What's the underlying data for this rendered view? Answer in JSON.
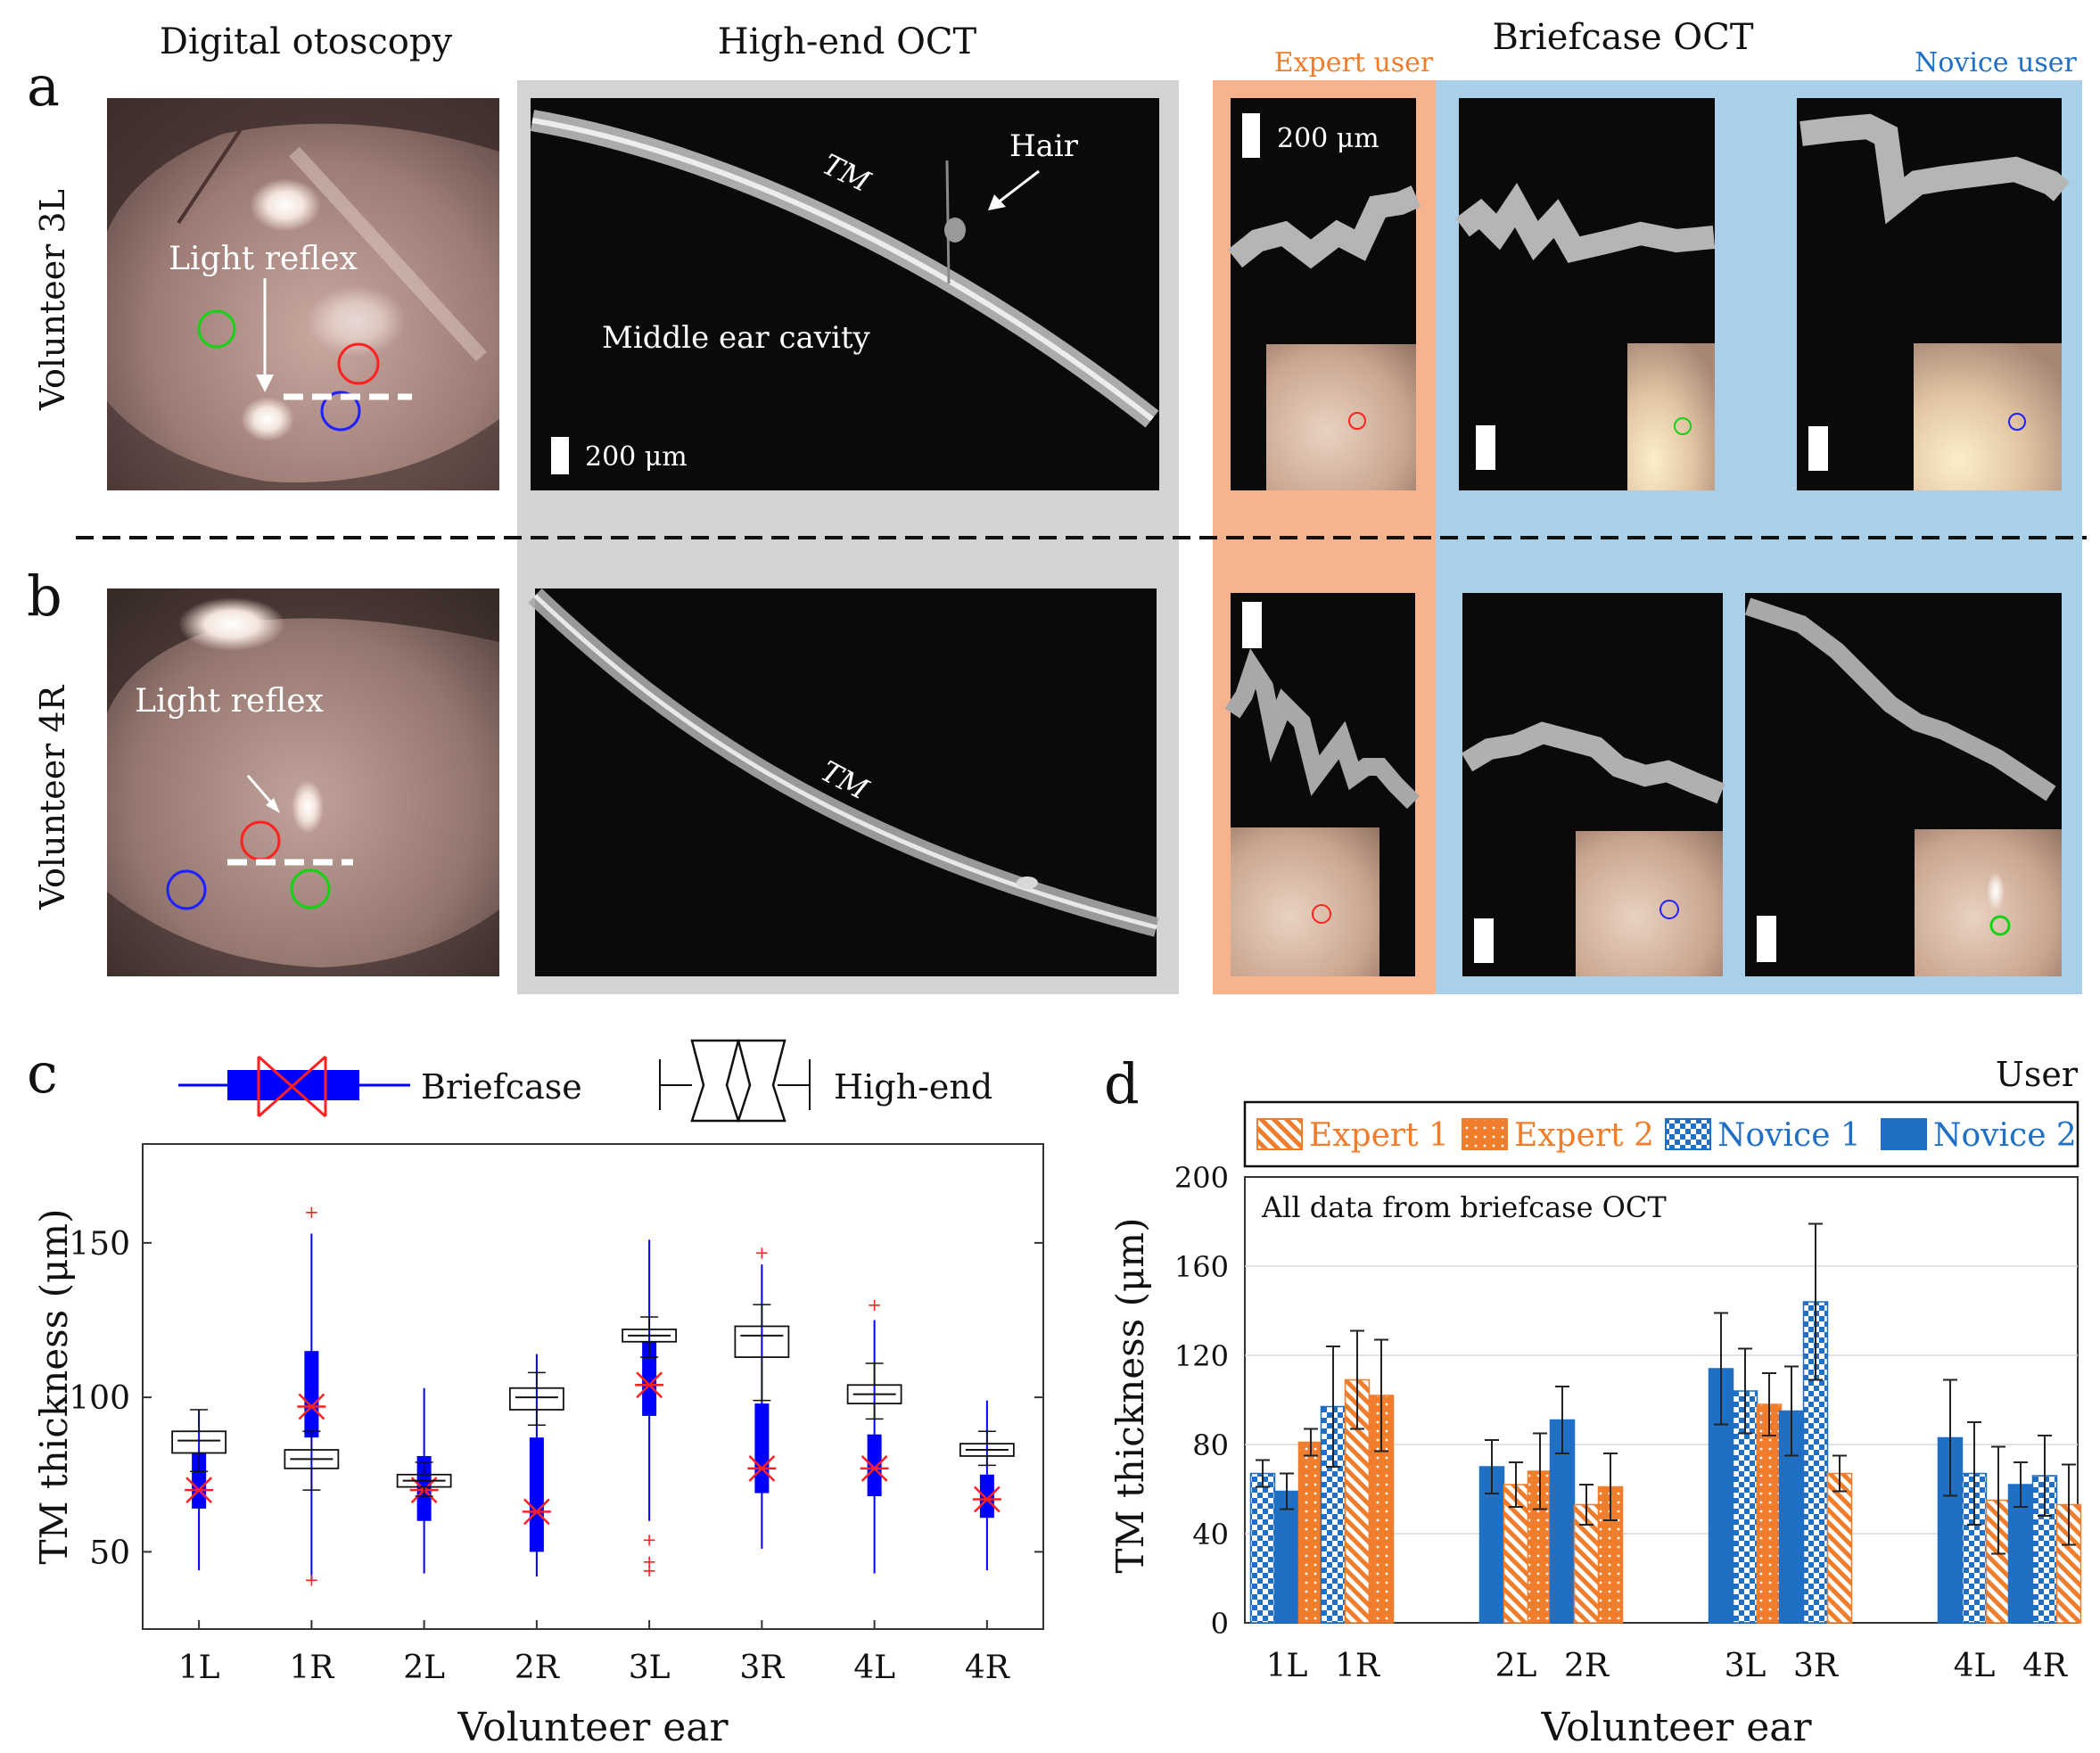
{
  "panels": {
    "a": {
      "letter": "a",
      "volunteer": "Volunteer  3L",
      "light_reflex": "Light reflex",
      "tm": "TM",
      "hair": "Hair",
      "cavity": "Middle ear cavity",
      "scale_hi": "200 μm",
      "scale_bf": "200 μm"
    },
    "b": {
      "letter": "b",
      "volunteer": "Volunteer  4R",
      "light_reflex": "Light reflex",
      "tm": "TM"
    },
    "c": {
      "letter": "c",
      "legend_briefcase": "Briefcase",
      "legend_highend": "High-end"
    },
    "d": {
      "letter": "d",
      "legend_title": "User",
      "annotation": "All data from briefcase OCT"
    }
  },
  "headers": {
    "otoscopy": "Digital otoscopy",
    "highend": "High-end OCT",
    "briefcase": "Briefcase OCT",
    "expert": "Expert user",
    "novice": "Novice user"
  },
  "colors": {
    "expert_bg": "#f7b28e",
    "novice_bg": "#a9cfe9",
    "gray_bg": "#d3d3d3",
    "expert_orange": "#ef7d2c",
    "novice_blue": "#1f6fc5",
    "box_blue": "#0000ff",
    "median_red": "#ff2020"
  },
  "chart_data": [
    {
      "type": "box",
      "ylabel": "TM thickness (μm)",
      "xlabel": "Volunteer ear",
      "categories": [
        "1L",
        "1R",
        "2L",
        "2R",
        "3L",
        "3R",
        "4L",
        "4R"
      ],
      "yticks": [
        50,
        100,
        150
      ],
      "ylim": [
        25,
        182
      ],
      "grid": false,
      "highend": [
        {
          "min": 76,
          "q1": 82,
          "median": 86,
          "q3": 89,
          "max": 96
        },
        {
          "min": 70,
          "q1": 77,
          "median": 80,
          "q3": 83,
          "max": 89
        },
        {
          "min": 68,
          "q1": 71,
          "median": 73,
          "q3": 75,
          "max": 79
        },
        {
          "min": 91,
          "q1": 96,
          "median": 100,
          "q3": 103,
          "max": 108
        },
        {
          "min": 113,
          "q1": 118,
          "median": 120,
          "q3": 122,
          "max": 126
        },
        {
          "min": 99,
          "q1": 113,
          "median": 120,
          "q3": 123,
          "max": 130
        },
        {
          "min": 93,
          "q1": 98,
          "median": 101,
          "q3": 104,
          "max": 111
        },
        {
          "min": 78,
          "q1": 81,
          "median": 83,
          "q3": 85,
          "max": 89
        }
      ],
      "briefcase": [
        {
          "whisker_low": 44,
          "q1": 64,
          "median": 70,
          "q3": 82,
          "whisker_high": 96,
          "outliers": []
        },
        {
          "whisker_low": 41,
          "q1": 87,
          "median": 97,
          "q3": 115,
          "whisker_high": 153,
          "outliers": [
            41,
            160
          ]
        },
        {
          "whisker_low": 43,
          "q1": 60,
          "median": 70,
          "q3": 81,
          "whisker_high": 103,
          "outliers": []
        },
        {
          "whisker_low": 42,
          "q1": 50,
          "median": 63,
          "q3": 87,
          "whisker_high": 114,
          "outliers": []
        },
        {
          "whisker_low": 60,
          "q1": 94,
          "median": 104,
          "q3": 118,
          "whisker_high": 151,
          "outliers": [
            44,
            47,
            54
          ]
        },
        {
          "whisker_low": 51,
          "q1": 69,
          "median": 77,
          "q3": 98,
          "whisker_high": 143,
          "outliers": [
            147
          ]
        },
        {
          "whisker_low": 43,
          "q1": 68,
          "median": 77,
          "q3": 88,
          "whisker_high": 125,
          "outliers": [
            130
          ]
        },
        {
          "whisker_low": 44,
          "q1": 61,
          "median": 67,
          "q3": 75,
          "whisker_high": 99,
          "outliers": []
        }
      ]
    },
    {
      "type": "bar",
      "ylabel": "TM thickness (μm)",
      "xlabel": "Volunteer ear",
      "categories": [
        "1L",
        "1R",
        "2L",
        "2R",
        "3L",
        "3R",
        "4L",
        "4R"
      ],
      "yticks": [
        0,
        40,
        80,
        120,
        160,
        200
      ],
      "ylim": [
        0,
        200
      ],
      "grid": true,
      "series": [
        {
          "name": "Expert 1",
          "values": [
            null,
            109,
            62,
            53,
            null,
            67,
            55,
            53
          ],
          "err": [
            null,
            22,
            10,
            9,
            null,
            8,
            24,
            18
          ]
        },
        {
          "name": "Expert 2",
          "values": [
            81,
            102,
            68,
            61,
            98,
            null,
            null,
            null
          ],
          "err": [
            6,
            25,
            17,
            15,
            14,
            null,
            null,
            null
          ]
        },
        {
          "name": "Novice 1",
          "values": [
            67,
            97,
            null,
            null,
            104,
            144,
            67,
            66
          ],
          "err": [
            6,
            27,
            null,
            null,
            19,
            35,
            23,
            18
          ]
        },
        {
          "name": "Novice 2",
          "values": [
            59,
            null,
            70,
            91,
            114,
            95,
            83,
            62
          ],
          "err": [
            8,
            null,
            12,
            15,
            25,
            20,
            26,
            10
          ]
        }
      ],
      "groups": [
        {
          "label": "1L",
          "bars": [
            [
              "Novice 1",
              67
            ],
            [
              "Novice 2",
              59
            ],
            [
              "Expert 2",
              81
            ]
          ]
        },
        {
          "label": "1R",
          "bars": [
            [
              "Novice 1",
              97
            ],
            [
              "Expert 1",
              109
            ],
            [
              "Expert 2",
              102
            ]
          ]
        },
        {
          "label": "2L",
          "bars": [
            [
              "Novice 2",
              70
            ],
            [
              "Expert 1",
              62
            ],
            [
              "Expert 2",
              68
            ]
          ]
        },
        {
          "label": "2R",
          "bars": [
            [
              "Novice 2",
              91
            ],
            [
              "Expert 1",
              53
            ],
            [
              "Expert 2",
              61
            ]
          ]
        },
        {
          "label": "3L",
          "bars": [
            [
              "Novice 2",
              114
            ],
            [
              "Novice 1",
              104
            ],
            [
              "Expert 2",
              98
            ]
          ]
        },
        {
          "label": "3R",
          "bars": [
            [
              "Novice 2",
              95
            ],
            [
              "Novice 1",
              144
            ],
            [
              "Expert 1",
              67
            ]
          ]
        },
        {
          "label": "4L",
          "bars": [
            [
              "Novice 2",
              83
            ],
            [
              "Novice 1",
              67
            ],
            [
              "Expert 1",
              55
            ]
          ]
        },
        {
          "label": "4R",
          "bars": [
            [
              "Novice 2",
              62
            ],
            [
              "Novice 1",
              66
            ],
            [
              "Expert 1",
              53
            ]
          ]
        }
      ]
    }
  ]
}
